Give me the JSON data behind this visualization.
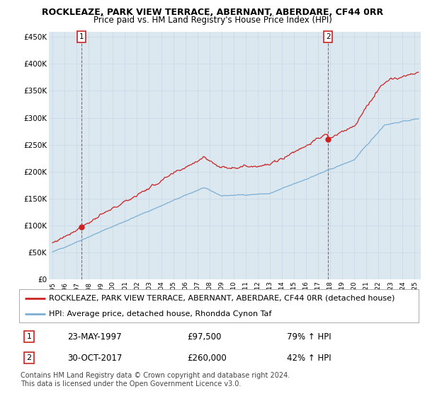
{
  "title": "ROCKLEAZE, PARK VIEW TERRACE, ABERNANT, ABERDARE, CF44 0RR",
  "subtitle": "Price paid vs. HM Land Registry's House Price Index (HPI)",
  "ylabel_ticks": [
    "£0",
    "£50K",
    "£100K",
    "£150K",
    "£200K",
    "£250K",
    "£300K",
    "£350K",
    "£400K",
    "£450K"
  ],
  "ytick_values": [
    0,
    50000,
    100000,
    150000,
    200000,
    250000,
    300000,
    350000,
    400000,
    450000
  ],
  "ylim": [
    0,
    460000
  ],
  "xlim_start": 1994.7,
  "xlim_end": 2025.5,
  "purchase1_date": 1997.39,
  "purchase1_price": 97500,
  "purchase2_date": 2017.83,
  "purchase2_price": 260000,
  "purchase1_date_str": "23-MAY-1997",
  "purchase1_price_str": "£97,500",
  "purchase1_pct": "79% ↑ HPI",
  "purchase2_date_str": "30-OCT-2017",
  "purchase2_price_str": "£260,000",
  "purchase2_pct": "42% ↑ HPI",
  "legend_line1": "ROCKLEAZE, PARK VIEW TERRACE, ABERNANT, ABERDARE, CF44 0RR (detached house)",
  "legend_line2": "HPI: Average price, detached house, Rhondda Cynon Taf",
  "footnote": "Contains HM Land Registry data © Crown copyright and database right 2024.\nThis data is licensed under the Open Government Licence v3.0.",
  "hpi_color": "#7bafd4",
  "price_color": "#cc2222",
  "grid_color": "#c8d8e8",
  "bg_color": "#dce8f0",
  "plot_bg": "#dce8f0",
  "title_fontsize": 9.0,
  "subtitle_fontsize": 8.5,
  "tick_fontsize": 7.5,
  "legend_fontsize": 8.0,
  "footnote_fontsize": 7.0
}
